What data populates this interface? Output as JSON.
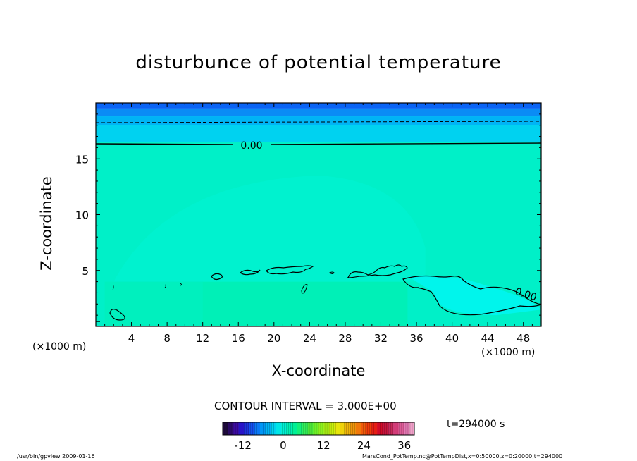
{
  "chart_data": {
    "type": "heatmap",
    "title": "disturbunce of potential temperature",
    "xlabel": "X-coordinate",
    "ylabel": "Z-coordinate",
    "x_unit": "(×1000 m)",
    "x_unit_right": "(×1000 m)",
    "xlim": [
      0,
      50
    ],
    "ylim": [
      0,
      20
    ],
    "x_ticks": [
      4,
      8,
      12,
      16,
      20,
      24,
      28,
      32,
      36,
      40,
      44,
      48
    ],
    "y_ticks": [
      5,
      10,
      15
    ],
    "contour_label": "0.00",
    "contour_label_right": "0.00",
    "contour_interval_text": "CONTOUR INTERVAL = 3.000E+00",
    "time_text": "t=294000 s",
    "colorbar": {
      "min": -18,
      "max": 39,
      "ticks": [
        -12,
        0,
        12,
        24,
        36
      ],
      "colors": [
        "#1e0a3c",
        "#2d0a6e",
        "#3c0aa0",
        "#2814c8",
        "#1e32dc",
        "#1450f0",
        "#0a78f5",
        "#0096f5",
        "#00b4f5",
        "#00d2f0",
        "#00e6e6",
        "#00f0d2",
        "#00f0b4",
        "#00f096",
        "#14f078",
        "#32f05a",
        "#50f03c",
        "#6ef028",
        "#8cf01e",
        "#aaf014",
        "#c8f00a",
        "#e6e60a",
        "#f0d20a",
        "#f0b40a",
        "#f0960a",
        "#f0780a",
        "#f05a0a",
        "#f03c0a",
        "#e61e14",
        "#d20a28",
        "#c8143c",
        "#c8285a",
        "#d23c78",
        "#dc5a96",
        "#e678b4",
        "#f0a0c8"
      ]
    },
    "field_bands": [
      {
        "z_from": 19.5,
        "z_to": 20,
        "color": "#0a64f5"
      },
      {
        "z_from": 18.8,
        "z_to": 19.5,
        "color": "#0a8cf5"
      },
      {
        "z_from": 18.0,
        "z_to": 18.8,
        "color": "#00b4f5"
      },
      {
        "z_from": 16.5,
        "z_to": 18.0,
        "color": "#00d2f0"
      },
      {
        "z_from": 0,
        "z_to": 16.5,
        "color": "#00f0c8"
      }
    ]
  },
  "footer": {
    "left": "/usr/bin/gpview   2009-01-16",
    "right": "MarsCond_PotTemp.nc@PotTempDist,x=0:50000,z=0:20000,t=294000"
  }
}
